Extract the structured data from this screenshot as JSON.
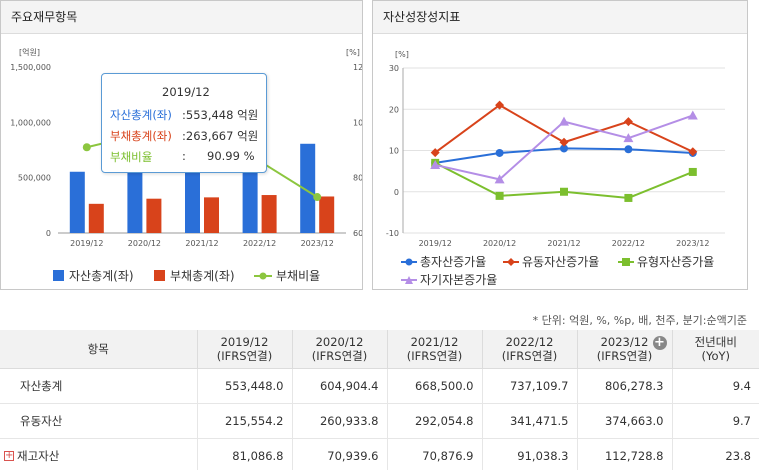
{
  "left_panel": {
    "title": "주요재무항목",
    "y_left_unit": "[억원]",
    "y_right_unit": "[%]",
    "tooltip": {
      "year": "2019/12",
      "assets_label": "자산총계(좌)",
      "assets_value": ":553,448 억원",
      "liab_label": "부채총계(좌)",
      "liab_value": ":263,667 억원",
      "ratio_label": "부채비율",
      "ratio_sep": ":",
      "ratio_value": "90.99 %"
    },
    "legend": [
      "자산총계(좌)",
      "부채총계(좌)",
      "부채비율"
    ]
  },
  "right_panel": {
    "title": "자산성장성지표",
    "y_unit": "[%]",
    "legend": [
      "총자산증가율",
      "유동자산증가율",
      "유형자산증가율",
      "자기자본증가율"
    ]
  },
  "colors": {
    "assets": "#2a6fd8",
    "liabilities": "#d8431b",
    "ratio": "#8cc63f",
    "total_asset_growth": "#2a6fd8",
    "current_asset_growth": "#d8431b",
    "tangible_asset_growth": "#7cbf2e",
    "equity_growth": "#b48ee6"
  },
  "chart_data": [
    {
      "type": "bar",
      "title": "주요재무항목",
      "categories": [
        "2019/12",
        "2020/12",
        "2021/12",
        "2022/12",
        "2023/12"
      ],
      "ylim": [
        0,
        1500000
      ],
      "y2lim": [
        60,
        120
      ],
      "yticks": [
        "1,500,000",
        "1,000,000",
        "500,000",
        "0"
      ],
      "y2ticks": [
        "120",
        "100",
        "80",
        "60"
      ],
      "series": [
        {
          "name": "자산총계(좌)",
          "axis": "left",
          "type": "bar",
          "values": [
            553448,
            604904.4,
            668500,
            737109.7,
            806278.3
          ]
        },
        {
          "name": "부채총계(좌)",
          "axis": "left",
          "type": "bar",
          "values": [
            263667,
            310000,
            322000,
            343000,
            330000
          ]
        },
        {
          "name": "부채비율",
          "axis": "right",
          "type": "line",
          "values": [
            90.99,
            96,
            96,
            86,
            73
          ]
        }
      ],
      "legend_position": "bottom"
    },
    {
      "type": "line",
      "title": "자산성장성지표",
      "categories": [
        "2019/12",
        "2020/12",
        "2021/12",
        "2022/12",
        "2023/12"
      ],
      "ylim": [
        -10,
        30
      ],
      "yticks": [
        "30",
        "20",
        "10",
        "0",
        "-10"
      ],
      "series": [
        {
          "name": "총자산증가율",
          "values": [
            7,
            9.4,
            10.5,
            10.3,
            9.4
          ]
        },
        {
          "name": "유동자산증가율",
          "values": [
            9.5,
            21,
            12,
            17,
            9.7
          ]
        },
        {
          "name": "유형자산증가율",
          "values": [
            7,
            -1,
            0,
            -1.5,
            4.8
          ]
        },
        {
          "name": "자기자본증가율",
          "values": [
            6.5,
            3,
            17,
            13,
            18.5
          ]
        }
      ],
      "grid": true,
      "legend_position": "bottom"
    }
  ],
  "table": {
    "unit_note": "* 단위: 억원, %, %p, 배, 천주, 분기:순액기준",
    "header_item": "항목",
    "columns": [
      {
        "year": "2019/12",
        "basis": "(IFRS연결)"
      },
      {
        "year": "2020/12",
        "basis": "(IFRS연결)"
      },
      {
        "year": "2021/12",
        "basis": "(IFRS연결)"
      },
      {
        "year": "2022/12",
        "basis": "(IFRS연결)"
      },
      {
        "year": "2023/12",
        "basis": "(IFRS연결)"
      }
    ],
    "yoy_header": "전년대비",
    "yoy_sub": "(YoY)",
    "rows": [
      {
        "label": "자산총계",
        "values": [
          "553,448.0",
          "604,904.4",
          "668,500.0",
          "737,109.7",
          "806,278.3"
        ],
        "yoy": "9.4"
      },
      {
        "label": "유동자산",
        "values": [
          "215,554.2",
          "260,933.8",
          "292,054.8",
          "341,471.5",
          "374,663.0"
        ],
        "yoy": "9.7"
      },
      {
        "label": "재고자산",
        "values": [
          "81,086.8",
          "70,939.6",
          "70,876.9",
          "91,038.3",
          "112,728.8"
        ],
        "yoy": "23.8"
      }
    ]
  }
}
